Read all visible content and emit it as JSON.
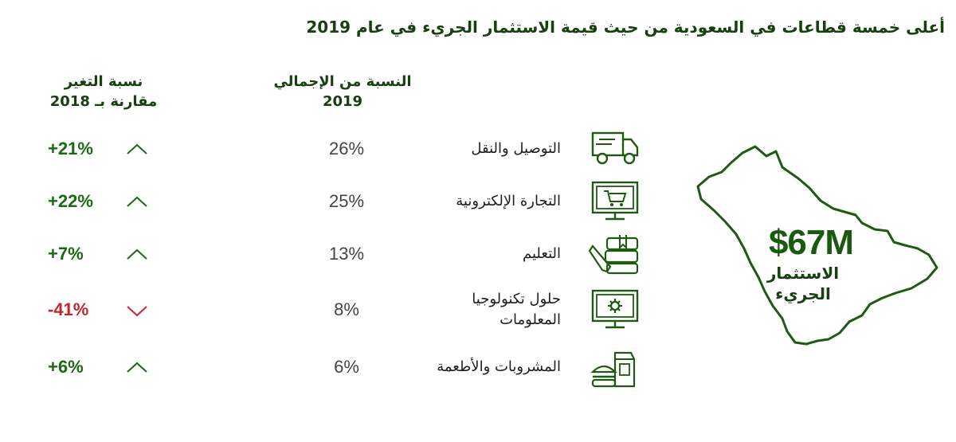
{
  "title": "أعلى خمسة قطاعات في السعودية من حيث قيمة الاستثمار الجريء في عام 2019",
  "headers": {
    "share_line1": "النسبة من الإجمالي",
    "share_line2": "2019",
    "change_line1": "نسبة التغير",
    "change_line2": "مقارنة بـ 2018"
  },
  "map": {
    "value": "$67M",
    "label_line1": "الاستثمار",
    "label_line2": "الجريء"
  },
  "colors": {
    "green": "#1a6a14",
    "dark_green": "#17400f",
    "red": "#c0262d",
    "icon_green": "#1e5a12"
  },
  "chart_data": {
    "type": "table",
    "columns": [
      "sector",
      "share_2019",
      "change_vs_2018"
    ],
    "rows": [
      {
        "sector_lines": [
          "التوصيل والنقل"
        ],
        "share": "26%",
        "change": "+21%",
        "direction": "up",
        "icon": "delivery-truck-icon"
      },
      {
        "sector_lines": [
          "التجارة الإلكترونية"
        ],
        "share": "25%",
        "change": "+22%",
        "direction": "up",
        "icon": "ecommerce-cart-icon"
      },
      {
        "sector_lines": [
          "التعليم"
        ],
        "share": "13%",
        "change": "+7%",
        "direction": "up",
        "icon": "education-books-icon"
      },
      {
        "sector_lines": [
          "حلول تكنولوجيا",
          "المعلومات"
        ],
        "share": "8%",
        "change": "-41%",
        "direction": "down",
        "icon": "it-monitor-gear-icon"
      },
      {
        "sector_lines": [
          "المشروبات والأطعمة"
        ],
        "share": "6%",
        "change": "+6%",
        "direction": "up",
        "icon": "food-beverage-icon"
      }
    ],
    "share_values": [
      26,
      25,
      13,
      8,
      6
    ],
    "change_values": [
      21,
      22,
      7,
      -41,
      6
    ]
  }
}
